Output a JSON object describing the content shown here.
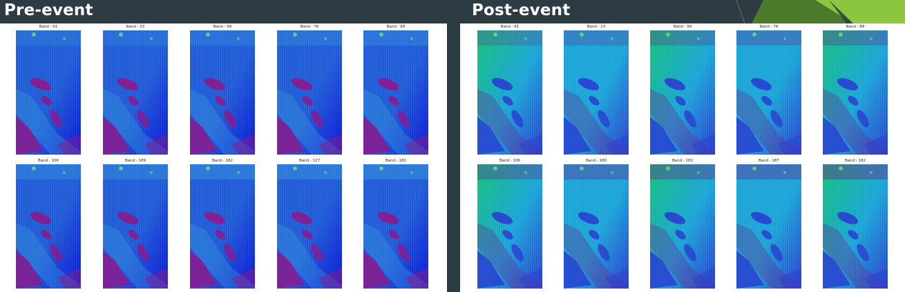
{
  "pre_event": {
    "title": "Pre-event",
    "rows": [
      [
        "Band - 61",
        "Band - 23",
        "Band - 99",
        "Band - 78",
        "Band - 89"
      ],
      [
        "Band - 106",
        "Band - 189",
        "Band - 182",
        "Band - 127",
        "Band - 182"
      ]
    ]
  },
  "post_event": {
    "title": "Post-event",
    "rows": [
      [
        "Band - 61",
        "Band - 23",
        "Band - 99",
        "Band - 78",
        "Band - 89"
      ],
      [
        "Band - 106",
        "Band - 189",
        "Band - 182",
        "Band - 187",
        "Band - 182"
      ]
    ]
  },
  "colors": {
    "header_bg": "#2d3c43",
    "accent_green_light": "#8cc63f",
    "accent_green_dark": "#4a7a2a",
    "pre_palette": [
      "#1f5bd6",
      "#0a18d6",
      "#8b1a8c",
      "#3aa0e0"
    ],
    "post_palette": [
      "#1aa4d8",
      "#12c07a",
      "#2a3fd0",
      "#6a2a90"
    ]
  }
}
